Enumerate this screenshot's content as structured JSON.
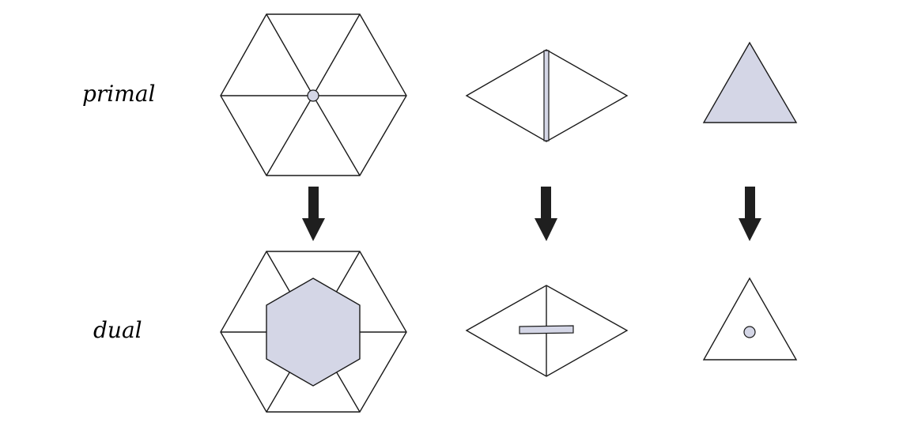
{
  "labels": {
    "primal": "primal",
    "dual": "dual"
  },
  "colors": {
    "stroke": "#1a1a1a",
    "highlight_fill": "#d4d6e6",
    "arrow": "#1f1f1f",
    "background": "#ffffff"
  },
  "columns": [
    {
      "primal_element": "vertex",
      "dual_element": "face"
    },
    {
      "primal_element": "edge",
      "dual_element": "edge"
    },
    {
      "primal_element": "face",
      "dual_element": "vertex"
    }
  ]
}
